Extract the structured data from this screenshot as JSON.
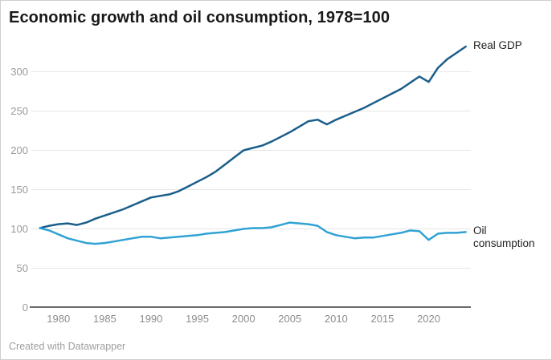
{
  "footer": {
    "text": "Created with Datawrapper"
  },
  "chart_data": {
    "type": "line",
    "title": "Economic growth and oil consumption, 1978=100",
    "xlabel": "",
    "ylabel": "",
    "grid": "horizontal-only",
    "legend_position": "labels-at-line-ends",
    "axis_text_color": "#9a9a9a",
    "baseline_color": "#6b6b6b",
    "ylim": [
      0,
      340
    ],
    "y_ticks": [
      0,
      50,
      100,
      150,
      200,
      250,
      300
    ],
    "x_ticks": [
      1980,
      1985,
      1990,
      1995,
      2000,
      2005,
      2010,
      2015,
      2020
    ],
    "x": [
      1978,
      1979,
      1980,
      1981,
      1982,
      1983,
      1984,
      1985,
      1986,
      1987,
      1988,
      1989,
      1990,
      1991,
      1992,
      1993,
      1994,
      1995,
      1996,
      1997,
      1998,
      1999,
      2000,
      2001,
      2002,
      2003,
      2004,
      2005,
      2006,
      2007,
      2008,
      2009,
      2010,
      2011,
      2012,
      2013,
      2014,
      2015,
      2016,
      2017,
      2018,
      2019,
      2020,
      2021,
      2022,
      2023,
      2024
    ],
    "series": [
      {
        "name": "Real GDP",
        "color": "#1a5e8a",
        "values": [
          100,
          103,
          105,
          106,
          104,
          107,
          112,
          116,
          120,
          124,
          129,
          134,
          139,
          141,
          143,
          147,
          153,
          159,
          165,
          172,
          181,
          190,
          199,
          202,
          205,
          210,
          216,
          222,
          229,
          236,
          238,
          232,
          238,
          243,
          248,
          253,
          259,
          265,
          271,
          277,
          285,
          293,
          286,
          304,
          315,
          323,
          331
        ]
      },
      {
        "name": "Oil consumption",
        "color": "#31a2d4",
        "values": [
          100,
          97,
          92,
          87,
          84,
          81,
          80,
          81,
          83,
          85,
          87,
          89,
          89,
          87,
          88,
          89,
          90,
          91,
          93,
          94,
          95,
          97,
          99,
          100,
          100,
          101,
          104,
          107,
          106,
          105,
          103,
          95,
          91,
          89,
          87,
          88,
          88,
          90,
          92,
          94,
          97,
          96,
          85,
          93,
          94,
          94,
          95
        ]
      }
    ]
  }
}
